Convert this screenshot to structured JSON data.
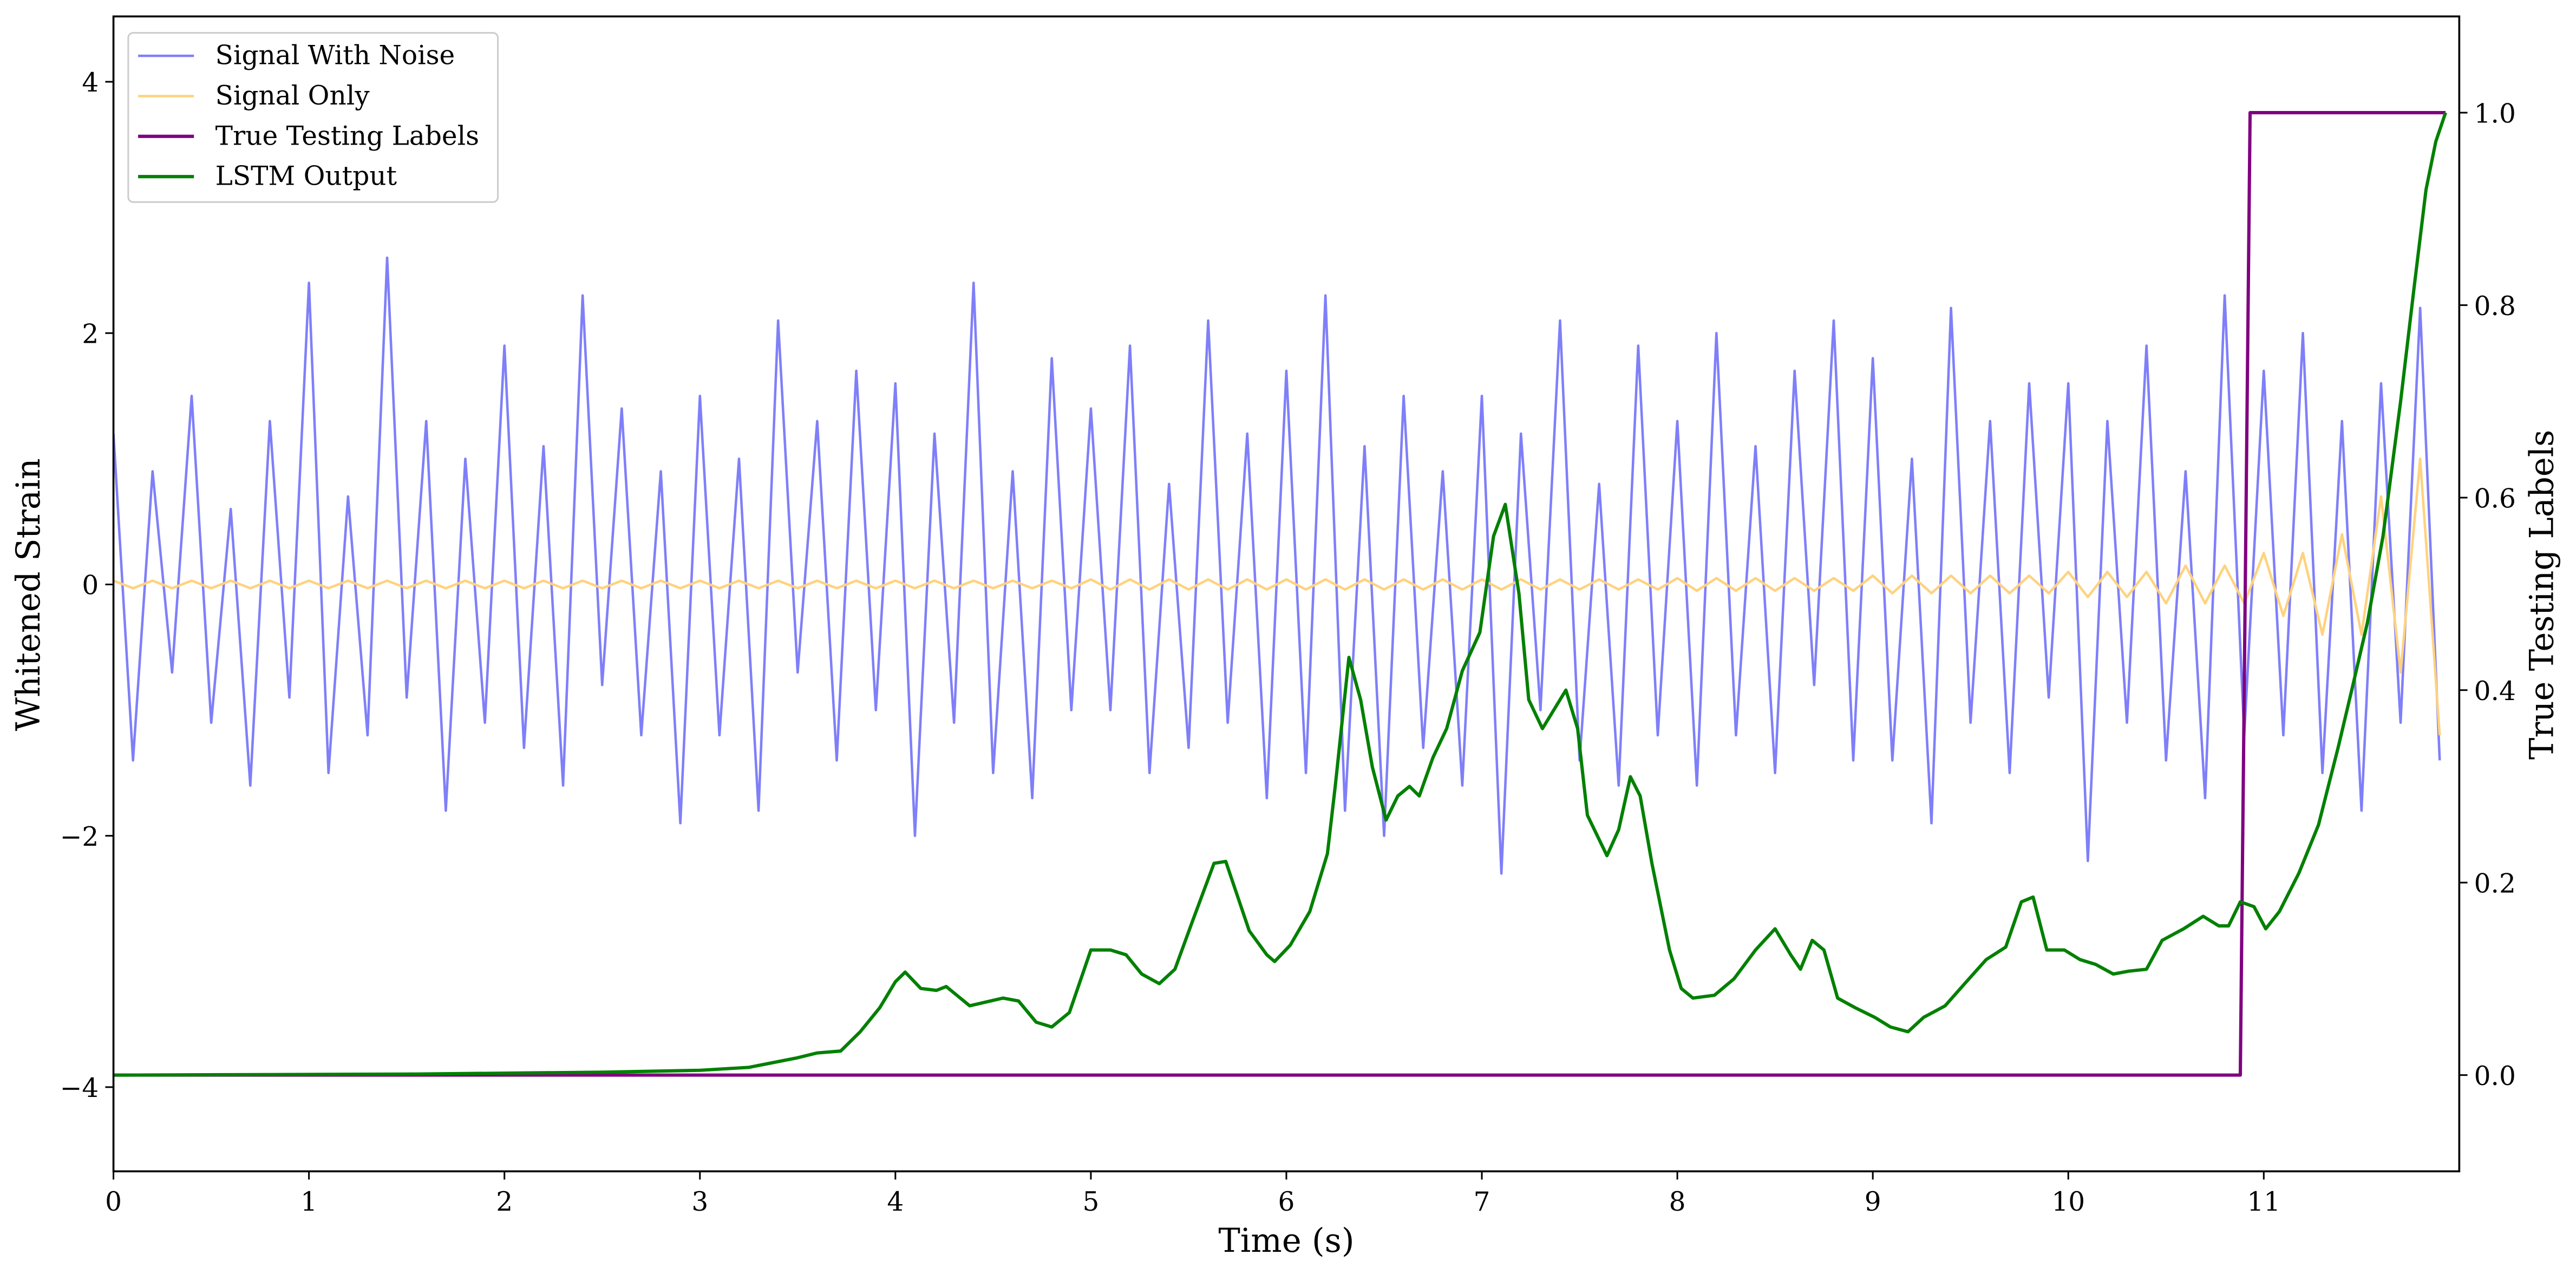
{
  "chart_data": {
    "type": "line",
    "xlabel": "Time (s)",
    "ylabel": "Whitened Strain",
    "y2label": "True Testing Labels",
    "xlim": [
      0,
      12
    ],
    "xticks": [
      0,
      1,
      2,
      3,
      4,
      5,
      6,
      7,
      8,
      9,
      10,
      11
    ],
    "ylim": [
      -4.67,
      4.52
    ],
    "yticks": [
      {
        "value": -4,
        "label": "−4"
      },
      {
        "value": -2,
        "label": "−2"
      },
      0,
      2,
      4
    ],
    "y2lim": [
      -0.1,
      1.1
    ],
    "y2ticks": [
      {
        "value": 0,
        "label": "0.0"
      },
      0.2,
      0.4,
      0.6,
      0.8,
      {
        "value": 1,
        "label": "1.0"
      }
    ],
    "legend": "upper left",
    "grid": false,
    "series": [
      {
        "name": "Signal With Noise",
        "color": "#7f7ff9",
        "width": 1.5,
        "x": [
          0,
          0.1,
          0.2,
          0.3,
          0.4,
          0.5,
          0.6,
          0.7,
          0.8,
          0.9,
          1,
          1.1,
          1.2,
          1.3,
          1.4,
          1.5,
          1.6,
          1.7,
          1.8,
          1.9,
          2,
          2.1,
          2.2,
          2.3,
          2.4,
          2.5,
          2.6,
          2.7,
          2.8,
          2.9,
          3,
          3.1,
          3.2,
          3.3,
          3.4,
          3.5,
          3.6,
          3.7,
          3.8,
          3.9,
          4,
          4.1,
          4.2,
          4.3,
          4.4,
          4.5,
          4.6,
          4.7,
          4.8,
          4.9,
          5,
          5.1,
          5.2,
          5.3,
          5.4,
          5.5,
          5.6,
          5.7,
          5.8,
          5.9,
          6,
          6.1,
          6.2,
          6.3,
          6.4,
          6.5,
          6.6,
          6.7,
          6.8,
          6.9,
          7,
          7.1,
          7.2,
          7.3,
          7.4,
          7.5,
          7.6,
          7.7,
          7.8,
          7.9,
          8,
          8.1,
          8.2,
          8.3,
          8.4,
          8.5,
          8.6,
          8.7,
          8.8,
          8.9,
          9,
          9.1,
          9.2,
          9.3,
          9.4,
          9.5,
          9.6,
          9.7,
          9.8,
          9.9,
          10,
          10.1,
          10.2,
          10.3,
          10.4,
          10.5,
          10.6,
          10.7,
          10.8,
          10.9,
          11,
          11.1,
          11.2,
          11.3,
          11.4,
          11.5,
          11.6,
          11.7,
          11.8,
          11.9
        ],
        "values": [
          1.2,
          -1.4,
          0.9,
          -0.7,
          1.5,
          -1.1,
          0.6,
          -1.6,
          1.3,
          -0.9,
          2.4,
          -1.5,
          0.7,
          -1.2,
          2.6,
          -0.9,
          1.3,
          -1.8,
          1.0,
          -1.1,
          1.9,
          -1.3,
          1.1,
          -1.6,
          2.3,
          -0.8,
          1.4,
          -1.2,
          0.9,
          -1.9,
          1.5,
          -1.2,
          1.0,
          -1.8,
          2.1,
          -0.7,
          1.3,
          -1.4,
          1.7,
          -1.0,
          1.6,
          -2.0,
          1.2,
          -1.1,
          2.4,
          -1.5,
          0.9,
          -1.7,
          1.8,
          -1.0,
          1.4,
          -1.0,
          1.9,
          -1.5,
          0.8,
          -1.3,
          2.1,
          -1.1,
          1.2,
          -1.7,
          1.7,
          -1.5,
          2.3,
          -1.8,
          1.1,
          -2.0,
          1.5,
          -1.3,
          0.9,
          -1.6,
          1.5,
          -2.3,
          1.2,
          -1.0,
          2.1,
          -1.4,
          0.8,
          -1.6,
          1.9,
          -1.2,
          1.3,
          -1.6,
          2.0,
          -1.2,
          1.1,
          -1.5,
          1.7,
          -0.8,
          2.1,
          -1.4,
          1.8,
          -1.4,
          1.0,
          -1.9,
          2.2,
          -1.1,
          1.3,
          -1.5,
          1.6,
          -0.9,
          1.6,
          -2.2,
          1.3,
          -1.1,
          1.9,
          -1.4,
          0.9,
          -1.7,
          2.3,
          -1.2,
          1.7,
          -1.2,
          2.0,
          -1.5,
          1.3,
          -1.8,
          1.6,
          -1.1,
          2.2,
          -1.4
        ]
      },
      {
        "name": "Signal Only",
        "color": "#ffd27f",
        "width": 1.5,
        "x": [
          0,
          0.1,
          0.2,
          0.3,
          0.4,
          0.5,
          0.6,
          0.7,
          0.8,
          0.9,
          1,
          1.1,
          1.2,
          1.3,
          1.4,
          1.5,
          1.6,
          1.7,
          1.8,
          1.9,
          2,
          2.1,
          2.2,
          2.3,
          2.4,
          2.5,
          2.6,
          2.7,
          2.8,
          2.9,
          3,
          3.1,
          3.2,
          3.3,
          3.4,
          3.5,
          3.6,
          3.7,
          3.8,
          3.9,
          4,
          4.1,
          4.2,
          4.3,
          4.4,
          4.5,
          4.6,
          4.7,
          4.8,
          4.9,
          5,
          5.1,
          5.2,
          5.3,
          5.4,
          5.5,
          5.6,
          5.7,
          5.8,
          5.9,
          6,
          6.1,
          6.2,
          6.3,
          6.4,
          6.5,
          6.6,
          6.7,
          6.8,
          6.9,
          7,
          7.1,
          7.2,
          7.3,
          7.4,
          7.5,
          7.6,
          7.7,
          7.8,
          7.9,
          8,
          8.1,
          8.2,
          8.3,
          8.4,
          8.5,
          8.6,
          8.7,
          8.8,
          8.9,
          9,
          9.1,
          9.2,
          9.3,
          9.4,
          9.5,
          9.6,
          9.7,
          9.8,
          9.9,
          10,
          10.1,
          10.2,
          10.3,
          10.4,
          10.5,
          10.6,
          10.7,
          10.8,
          10.9,
          11,
          11.1,
          11.2,
          11.3,
          11.4,
          11.5,
          11.6,
          11.7,
          11.8,
          11.9
        ],
        "values": [
          0.03,
          -0.03,
          0.03,
          -0.03,
          0.03,
          -0.03,
          0.03,
          -0.03,
          0.03,
          -0.03,
          0.03,
          -0.03,
          0.03,
          -0.03,
          0.03,
          -0.03,
          0.03,
          -0.03,
          0.03,
          -0.03,
          0.03,
          -0.03,
          0.03,
          -0.03,
          0.03,
          -0.03,
          0.03,
          -0.03,
          0.03,
          -0.03,
          0.03,
          -0.03,
          0.03,
          -0.03,
          0.03,
          -0.03,
          0.03,
          -0.03,
          0.03,
          -0.03,
          0.03,
          -0.03,
          0.03,
          -0.03,
          0.03,
          -0.03,
          0.03,
          -0.03,
          0.03,
          -0.03,
          0.04,
          -0.04,
          0.04,
          -0.04,
          0.04,
          -0.04,
          0.04,
          -0.04,
          0.04,
          -0.04,
          0.04,
          -0.04,
          0.04,
          -0.04,
          0.04,
          -0.04,
          0.04,
          -0.04,
          0.04,
          -0.04,
          0.04,
          -0.04,
          0.04,
          -0.04,
          0.04,
          -0.04,
          0.04,
          -0.04,
          0.04,
          -0.04,
          0.05,
          -0.05,
          0.05,
          -0.05,
          0.05,
          -0.05,
          0.05,
          -0.05,
          0.05,
          -0.05,
          0.07,
          -0.07,
          0.07,
          -0.07,
          0.07,
          -0.07,
          0.07,
          -0.07,
          0.07,
          -0.07,
          0.1,
          -0.1,
          0.1,
          -0.1,
          0.1,
          -0.15,
          0.15,
          -0.15,
          0.15,
          -0.15,
          0.25,
          -0.25,
          0.25,
          -0.4,
          0.4,
          -0.4,
          0.7,
          -0.7,
          1.0,
          -1.2
        ]
      },
      {
        "name": "True Testing Labels",
        "color": "#800080",
        "width": 2,
        "axis": "y2",
        "x": [
          0,
          10.88,
          10.93,
          11.93
        ],
        "values": [
          0,
          0,
          1,
          1
        ]
      },
      {
        "name": "LSTM Output",
        "color": "#008000",
        "width": 2,
        "axis": "y2",
        "x": [
          0,
          1.5,
          2.5,
          3.0,
          3.25,
          3.5,
          3.6,
          3.72,
          3.82,
          3.92,
          4.0,
          4.05,
          4.13,
          4.21,
          4.26,
          4.38,
          4.55,
          4.63,
          4.72,
          4.8,
          4.89,
          5.0,
          5.1,
          5.18,
          5.26,
          5.35,
          5.43,
          5.52,
          5.63,
          5.69,
          5.81,
          5.9,
          5.94,
          6.02,
          6.12,
          6.21,
          6.25,
          6.32,
          6.38,
          6.44,
          6.51,
          6.57,
          6.63,
          6.68,
          6.75,
          6.82,
          6.9,
          6.99,
          7.06,
          7.12,
          7.19,
          7.24,
          7.31,
          7.37,
          7.43,
          7.49,
          7.54,
          7.64,
          7.7,
          7.76,
          7.81,
          7.87,
          7.96,
          8.02,
          8.08,
          8.19,
          8.29,
          8.4,
          8.5,
          8.58,
          8.63,
          8.69,
          8.75,
          8.82,
          8.91,
          9.01,
          9.09,
          9.18,
          9.26,
          9.37,
          9.47,
          9.58,
          9.68,
          9.76,
          9.82,
          9.89,
          9.98,
          10.06,
          10.14,
          10.23,
          10.31,
          10.4,
          10.48,
          10.59,
          10.69,
          10.77,
          10.82,
          10.88,
          10.95,
          11.01,
          11.08,
          11.18,
          11.28,
          11.38,
          11.45,
          11.53,
          11.61,
          11.7,
          11.77,
          11.83,
          11.88,
          11.93
        ],
        "values": [
          0,
          0.001,
          0.003,
          0.005,
          0.008,
          0.018,
          0.023,
          0.025,
          0.045,
          0.07,
          0.097,
          0.107,
          0.09,
          0.088,
          0.092,
          0.072,
          0.08,
          0.077,
          0.055,
          0.05,
          0.065,
          0.13,
          0.13,
          0.125,
          0.105,
          0.095,
          0.11,
          0.16,
          0.22,
          0.222,
          0.15,
          0.125,
          0.118,
          0.135,
          0.17,
          0.23,
          0.3,
          0.434,
          0.39,
          0.32,
          0.265,
          0.29,
          0.3,
          0.29,
          0.33,
          0.36,
          0.42,
          0.46,
          0.56,
          0.593,
          0.5,
          0.39,
          0.36,
          0.38,
          0.4,
          0.36,
          0.27,
          0.228,
          0.255,
          0.31,
          0.29,
          0.22,
          0.13,
          0.09,
          0.08,
          0.083,
          0.1,
          0.13,
          0.152,
          0.125,
          0.11,
          0.14,
          0.13,
          0.08,
          0.07,
          0.06,
          0.05,
          0.045,
          0.06,
          0.072,
          0.095,
          0.12,
          0.133,
          0.18,
          0.185,
          0.13,
          0.13,
          0.12,
          0.115,
          0.105,
          0.108,
          0.11,
          0.14,
          0.152,
          0.165,
          0.155,
          0.155,
          0.18,
          0.175,
          0.152,
          0.17,
          0.21,
          0.26,
          0.34,
          0.4,
          0.47,
          0.56,
          0.7,
          0.82,
          0.92,
          0.97,
          1.0
        ]
      }
    ]
  }
}
